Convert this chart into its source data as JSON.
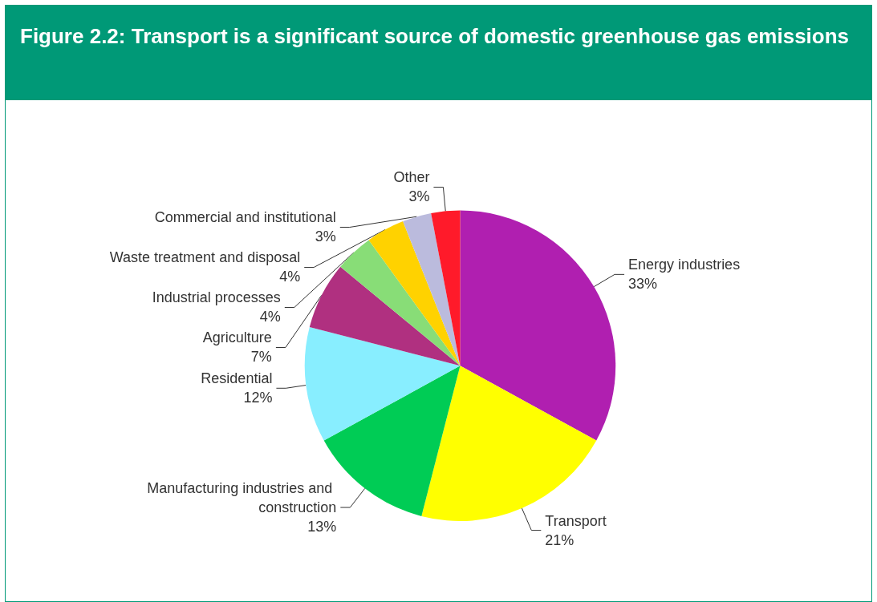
{
  "chart_data": {
    "type": "pie",
    "title": "Figure 2.2: Transport is a significant source of domestic greenhouse gas emissions",
    "categories": [
      "Energy industries",
      "Transport",
      "Manufacturing industries and construction",
      "Residential",
      "Agriculture",
      "Industrial processes",
      "Waste treatment and disposal",
      "Commercial and institutional",
      "Other"
    ],
    "values": [
      33,
      21,
      13,
      12,
      7,
      4,
      4,
      3,
      3
    ],
    "value_labels": [
      "33%",
      "21%",
      "13%",
      "12%",
      "7%",
      "4%",
      "4%",
      "3%",
      "3%"
    ],
    "colors": [
      "#b01fb0",
      "#ffff00",
      "#00cc55",
      "#88eeff",
      "#b03080",
      "#88dd77",
      "#ffd200",
      "#bbbbdd",
      "#ff1a2a"
    ],
    "legend": false
  }
}
